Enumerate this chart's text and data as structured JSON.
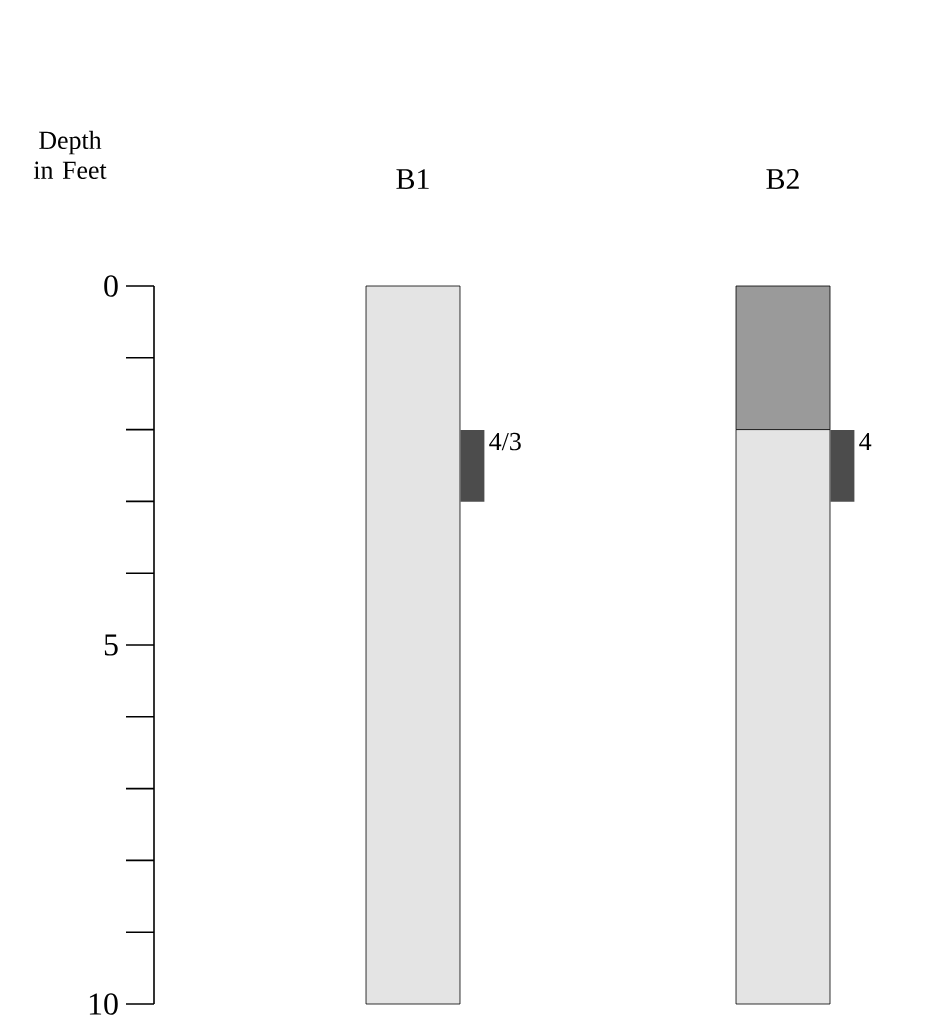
{
  "chart_data": {
    "type": "bar",
    "stacked": true,
    "ylabel": "Depth in Feet",
    "categories": [
      "B1",
      "B2"
    ],
    "ylim": [
      10,
      0
    ],
    "yticks": [
      0,
      5,
      10
    ],
    "series": [
      {
        "color": "#9a9a9a",
        "values": [
          0,
          2
        ]
      },
      {
        "color": "#e4e4e4",
        "values": [
          10,
          8
        ]
      }
    ],
    "annotations": [
      "4/3",
      "4"
    ]
  }
}
